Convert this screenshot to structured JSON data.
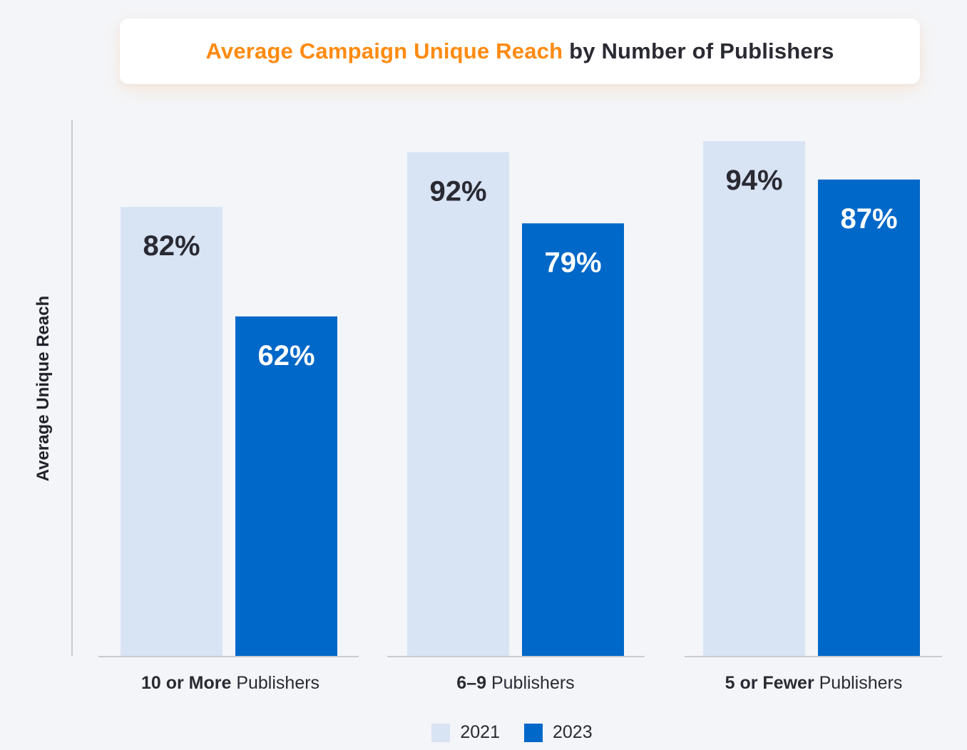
{
  "title": {
    "highlight": "Average Campaign Unique Reach",
    "rest": "by Number of Publishers"
  },
  "colors": {
    "accent": "#ff8a10",
    "series_2021": "#d8e3f4",
    "series_2023": "#0068c8",
    "label_dark": "#2a2a33",
    "label_light": "#ffffff"
  },
  "chart_data": {
    "type": "bar",
    "title": "Average Campaign Unique Reach by Number of Publishers",
    "xlabel": "",
    "ylabel": "Average Unique Reach",
    "ylim": [
      0,
      100
    ],
    "grid": false,
    "legend_position": "bottom",
    "categories": [
      {
        "bold": "10 or More",
        "rest": "Publishers"
      },
      {
        "bold": "6–9",
        "rest": "Publishers"
      },
      {
        "bold": "5 or Fewer",
        "rest": "Publishers"
      }
    ],
    "series": [
      {
        "name": "2021",
        "values": [
          82,
          92,
          94
        ],
        "labels": [
          "82%",
          "92%",
          "94%"
        ]
      },
      {
        "name": "2023",
        "values": [
          62,
          79,
          87
        ],
        "labels": [
          "62%",
          "79%",
          "87%"
        ]
      }
    ]
  }
}
